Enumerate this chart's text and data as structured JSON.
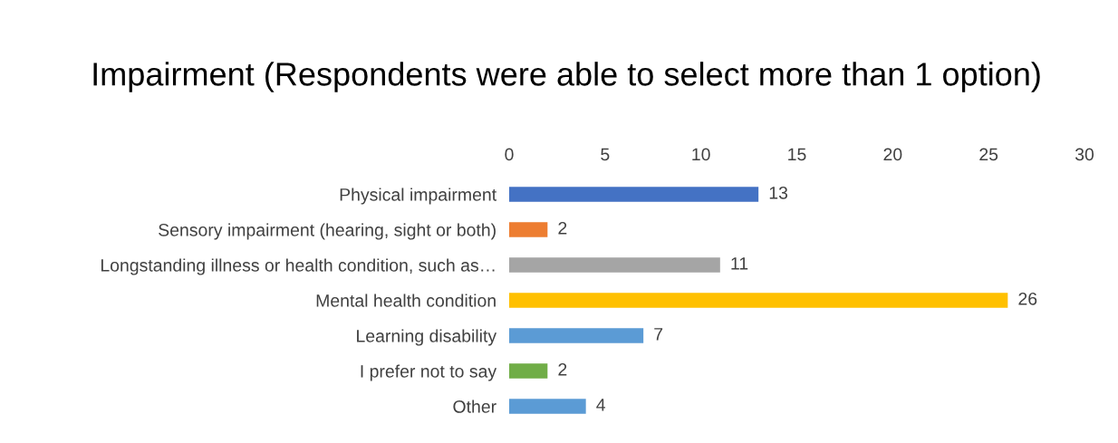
{
  "chart_data": {
    "type": "bar",
    "orientation": "horizontal",
    "title": "Impairment (Respondents were able to select more than 1 option)",
    "categories": [
      "Physical impairment",
      "Sensory impairment (hearing, sight or both)",
      "Longstanding illness or health condition, such as…",
      "Mental health condition",
      "Learning disability",
      "I prefer not to say",
      "Other"
    ],
    "values": [
      13,
      2,
      11,
      26,
      7,
      2,
      4
    ],
    "colors": [
      "#4472c4",
      "#ed7d31",
      "#a5a5a5",
      "#ffc000",
      "#5b9bd5",
      "#70ad47",
      "#5b9bd5"
    ],
    "xlim": [
      0,
      30
    ],
    "xticks": [
      0,
      5,
      10,
      15,
      20,
      25,
      30
    ],
    "grid": false,
    "data_labels": true
  }
}
